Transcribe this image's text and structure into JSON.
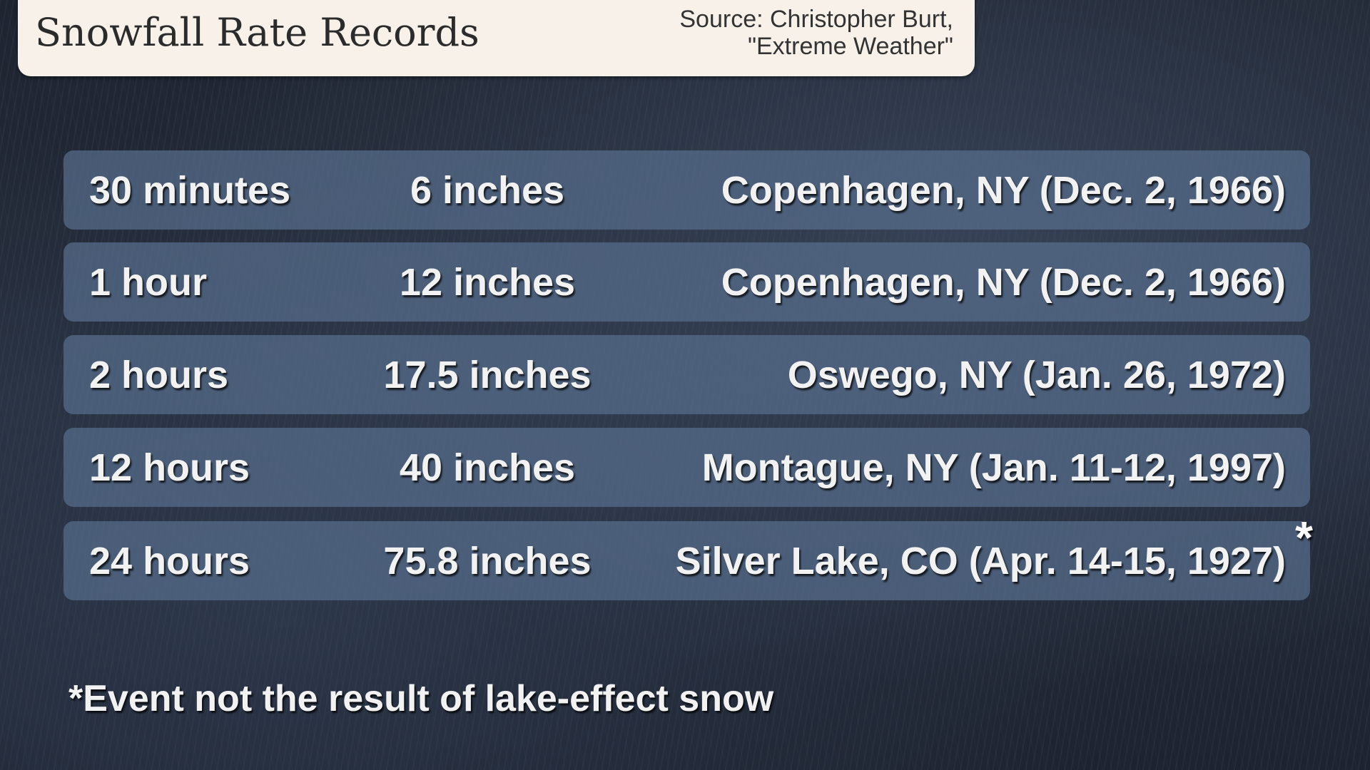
{
  "header": {
    "title": "Snowfall Rate Records",
    "source_line1": "Source: Christopher Burt,",
    "source_line2": "\"Extreme Weather\""
  },
  "records": [
    {
      "duration": "30 minutes",
      "amount": "6 inches",
      "location": "Copenhagen, NY (Dec. 2, 1966)"
    },
    {
      "duration": "1 hour",
      "amount": "12 inches",
      "location": "Copenhagen, NY (Dec. 2, 1966)"
    },
    {
      "duration": "2 hours",
      "amount": "17.5 inches",
      "location": "Oswego, NY (Jan. 26, 1972)"
    },
    {
      "duration": "12 hours",
      "amount": "40 inches",
      "location": "Montague, NY (Jan. 11-12, 1997)"
    },
    {
      "duration": "24 hours",
      "amount": "75.8 inches",
      "location": "Silver Lake, CO (Apr. 14-15, 1927)",
      "marker": "*"
    }
  ],
  "footnote": "*Event not the result of lake-effect snow"
}
